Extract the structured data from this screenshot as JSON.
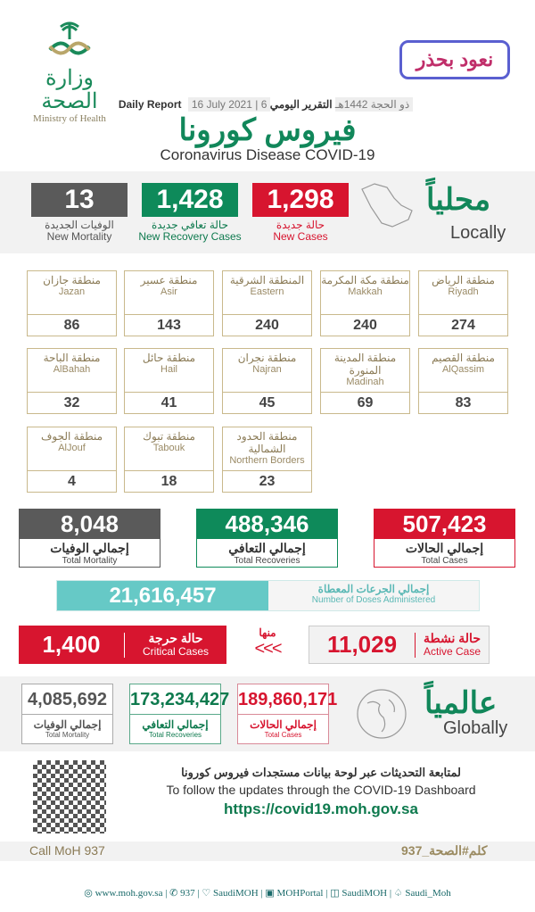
{
  "header": {
    "moh_logo_ar": "وزارة الصحة",
    "moh_logo_en": "Ministry of Health",
    "campaign_logo": "نعود بحذر",
    "report_ar": "التقرير اليومي",
    "report_date_hijri": "6 ذو الحجة 1442هـ",
    "report_date": "16 July 2021",
    "report_en": "Daily Report",
    "title_ar": "فيروس كورونا",
    "title_en": "Coronavirus Disease COVID-19"
  },
  "locally": {
    "title_ar": "محلياً",
    "title_en": "Locally",
    "new_cases": {
      "value": "1,298",
      "ar": "حالة جديدة",
      "en": "New Cases"
    },
    "new_recovery": {
      "value": "1,428",
      "ar": "حالة تعافي جديدة",
      "en": "New Recovery Cases"
    },
    "new_mortality": {
      "value": "13",
      "ar": "الوفيات الجديدة",
      "en": "New Mortality"
    }
  },
  "regions": [
    {
      "ar": "منطقة الرياض",
      "en": "Riyadh",
      "value": "274"
    },
    {
      "ar": "منطقة مكة المكرمة",
      "en": "Makkah",
      "value": "240"
    },
    {
      "ar": "المنطقة الشرقية",
      "en": "Eastern",
      "value": "240"
    },
    {
      "ar": "منطقة عسير",
      "en": "Asir",
      "value": "143"
    },
    {
      "ar": "منطقة جازان",
      "en": "Jazan",
      "value": "86"
    },
    {
      "ar": "منطقة القصيم",
      "en": "AlQassim",
      "value": "83"
    },
    {
      "ar": "منطقة المدينة المنورة",
      "en": "Madinah",
      "value": "69"
    },
    {
      "ar": "منطقة نجران",
      "en": "Najran",
      "value": "45"
    },
    {
      "ar": "منطقة حائل",
      "en": "Hail",
      "value": "41"
    },
    {
      "ar": "منطقة الباحة",
      "en": "AlBahah",
      "value": "32"
    },
    {
      "ar": "منطقة الحدود الشمالية",
      "en": "Northern Borders",
      "value": "23"
    },
    {
      "ar": "منطقة تبوك",
      "en": "Tabouk",
      "value": "18"
    },
    {
      "ar": "منطقة الجوف",
      "en": "AlJouf",
      "value": "4"
    }
  ],
  "totals": {
    "cases": {
      "value": "507,423",
      "ar": "إجمالي الحالات",
      "en": "Total Cases"
    },
    "recoveries": {
      "value": "488,346",
      "ar": "إجمالي التعافي",
      "en": "Total Recoveries"
    },
    "mortality": {
      "value": "8,048",
      "ar": "إجمالي الوفيات",
      "en": "Total Mortality"
    }
  },
  "doses": {
    "value": "21,616,457",
    "ar": "إجمالي الجرعات المعطاة",
    "en": "Number of Doses Administered"
  },
  "active": {
    "value": "11,029",
    "ar": "حالة نشطة",
    "en": "Active Case"
  },
  "of_which": "منها",
  "arrows": "<<<",
  "critical": {
    "value": "1,400",
    "ar": "حالة حرجة",
    "en": "Critical Cases"
  },
  "globally": {
    "title_ar": "عالمياً",
    "title_en": "Globally",
    "cases": {
      "value": "189,860,171",
      "ar": "إجمالي الحالات",
      "en": "Total Cases"
    },
    "recoveries": {
      "value": "173,234,427",
      "ar": "إجمالي التعافي",
      "en": "Total Recoveries"
    },
    "mortality": {
      "value": "4,085,692",
      "ar": "إجمالي الوفيات",
      "en": "Total Mortality"
    }
  },
  "dashboard": {
    "ar": "لمتابعة التحديثات عبر لوحة بيانات مستجدات فيروس كورونا",
    "en": "To follow the updates through the COVID-19 Dashboard",
    "url": "https://covid19.moh.gov.sa"
  },
  "call": {
    "en": "Call MoH 937",
    "ar": "كلم#الصحة_937"
  },
  "footer": [
    "www.moh.gov.sa",
    "937",
    "SaudiMOH",
    "MOHPortal",
    "SaudiMOH",
    "Saudi_Moh"
  ],
  "colors": {
    "red": "#d7152f",
    "green": "#0e8a5a",
    "gray": "#5a5a5a",
    "teal": "#66c9c6",
    "gold": "#c9b98c"
  }
}
